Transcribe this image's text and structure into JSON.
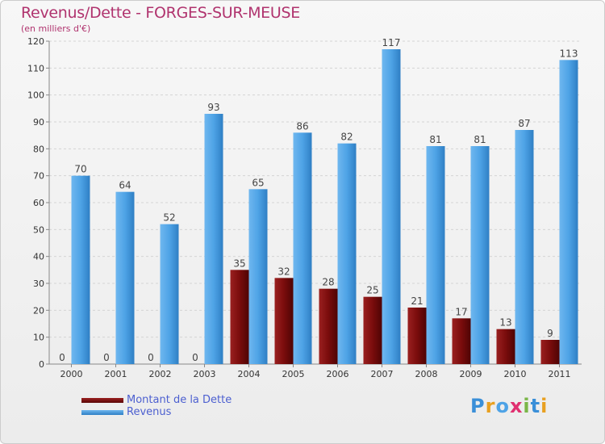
{
  "title": "Revenus/Dette - FORGES-SUR-MEUSE",
  "subtitle": "(en milliers d'€)",
  "logo_text": "Proxiti",
  "colors": {
    "dette": "#7a0c0c",
    "revenus": "#4ea3e6",
    "title": "#b0336e",
    "legend_text": "#4c5fd0"
  },
  "chart_data": {
    "type": "bar",
    "title": "Revenus/Dette - FORGES-SUR-MEUSE",
    "subtitle": "(en milliers d'€)",
    "categories": [
      "2000",
      "2001",
      "2002",
      "2003",
      "2004",
      "2005",
      "2006",
      "2007",
      "2008",
      "2009",
      "2010",
      "2011"
    ],
    "series": [
      {
        "name": "Montant de la Dette",
        "values": [
          0,
          0,
          0,
          0,
          35,
          32,
          28,
          25,
          21,
          17,
          13,
          9
        ]
      },
      {
        "name": "Revenus",
        "values": [
          70,
          64,
          52,
          93,
          65,
          86,
          82,
          117,
          81,
          81,
          87,
          113
        ]
      }
    ],
    "ylim": [
      0,
      120
    ],
    "yticks": [
      0,
      10,
      20,
      30,
      40,
      50,
      60,
      70,
      80,
      90,
      100,
      110,
      120
    ],
    "grid": true,
    "legend_position": "bottom-left"
  }
}
